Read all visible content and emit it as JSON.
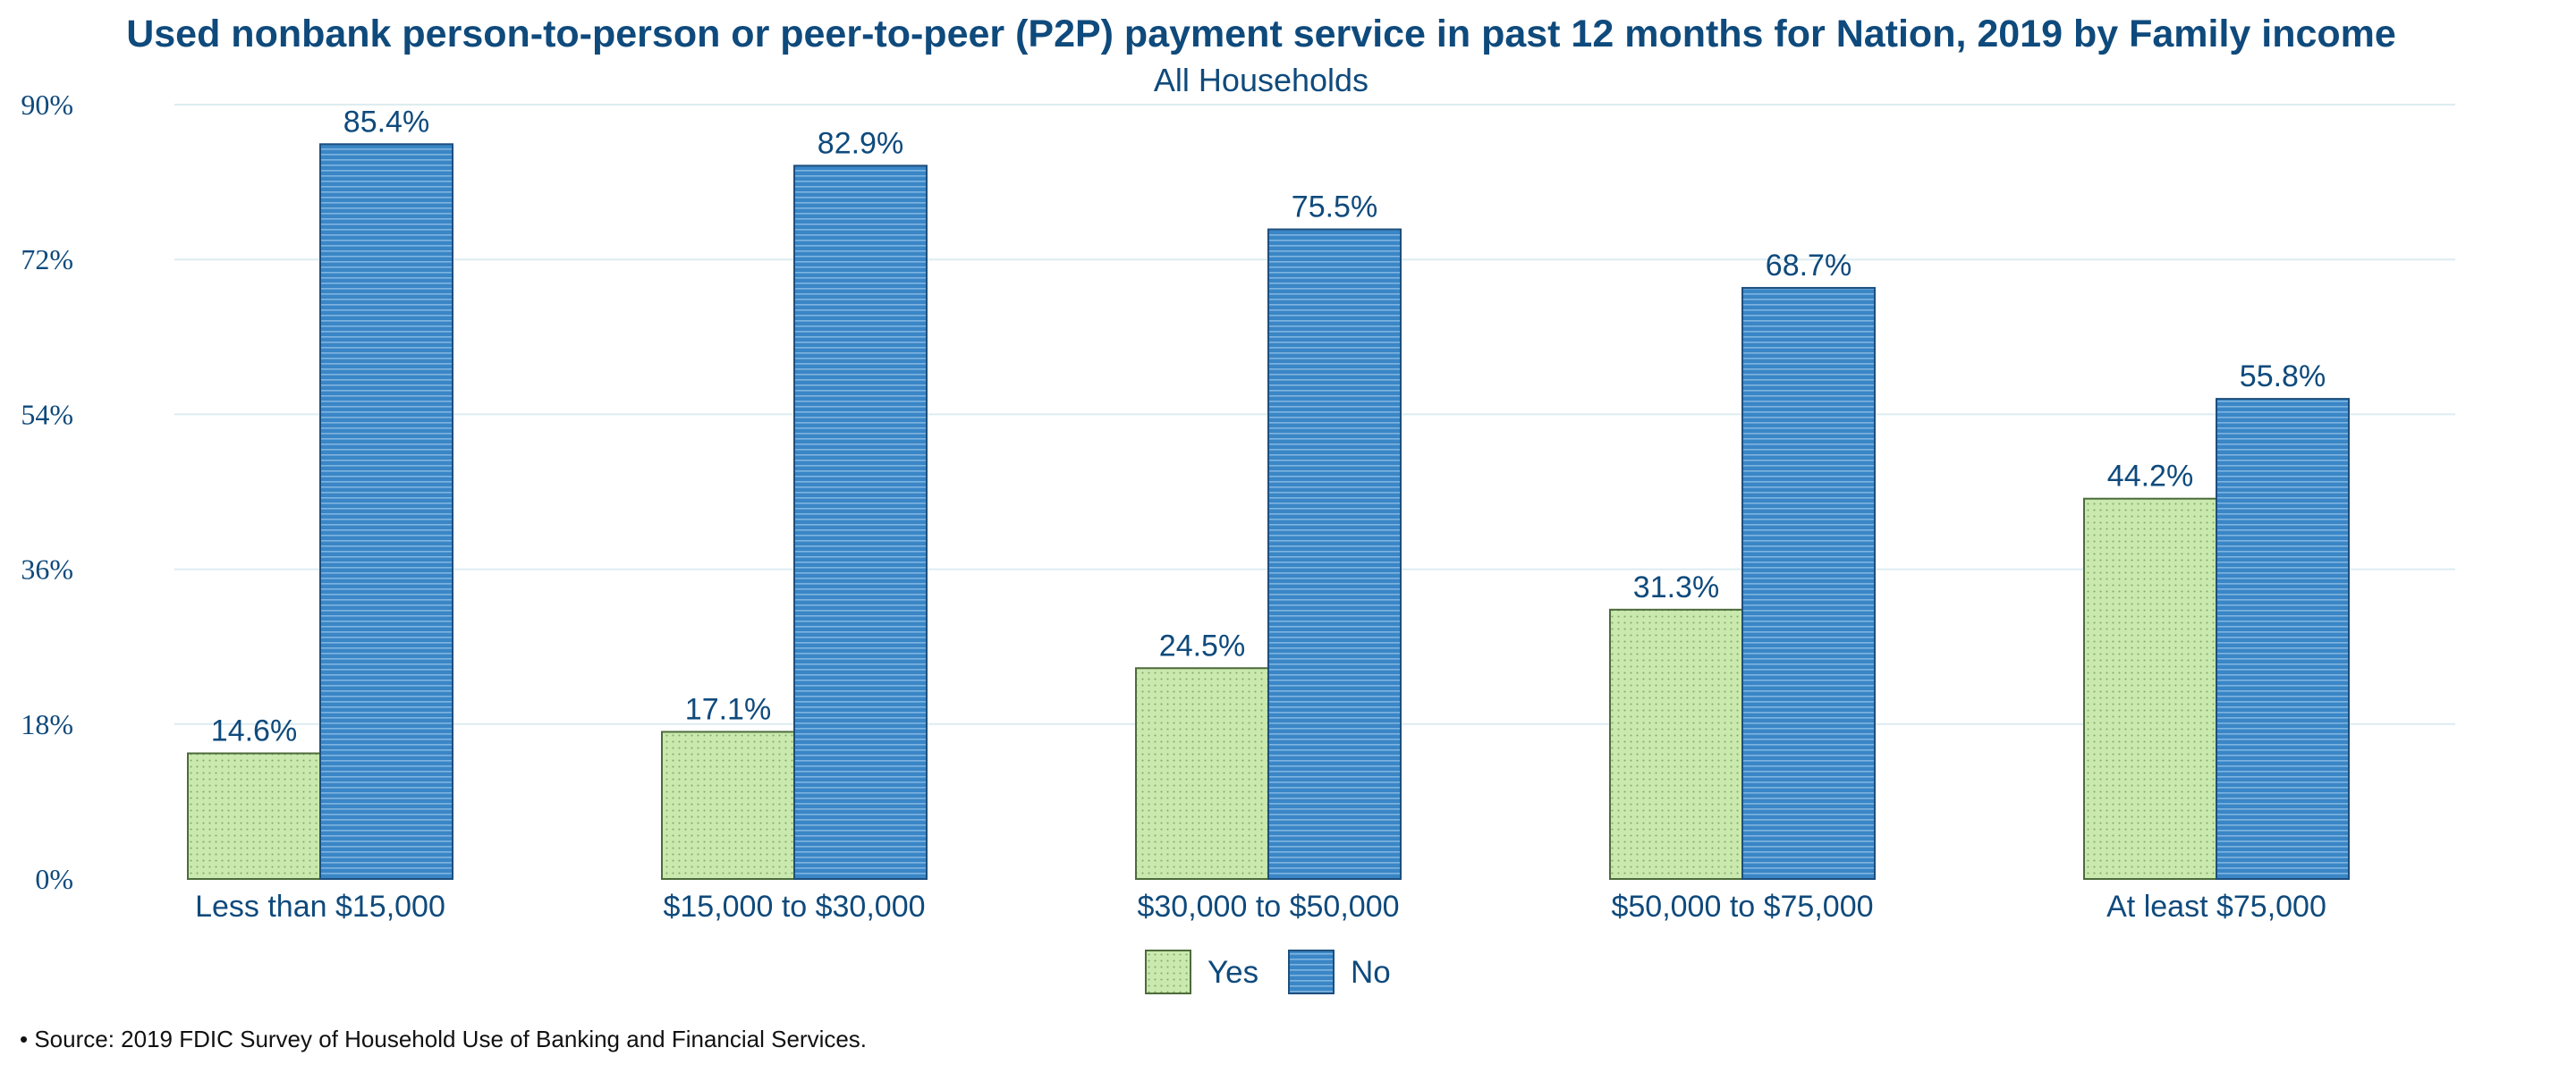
{
  "chart_data": {
    "type": "bar",
    "title": "Used nonbank person-to-person or peer-to-peer (P2P) payment service in past 12 months for Nation, 2019 by Family income",
    "subtitle": "All Households",
    "categories": [
      "Less than $15,000",
      "$15,000 to $30,000",
      "$30,000 to $50,000",
      "$50,000 to $75,000",
      "At least $75,000"
    ],
    "series": [
      {
        "name": "Yes",
        "values": [
          14.6,
          17.1,
          24.5,
          31.3,
          44.2
        ],
        "labels": [
          "14.6%",
          "17.1%",
          "24.5%",
          "31.3%",
          "44.2%"
        ],
        "color": "#c9e9ae",
        "border": "#4d6b3b",
        "pattern": "dots"
      },
      {
        "name": "No",
        "values": [
          85.4,
          82.9,
          75.5,
          68.7,
          55.8
        ],
        "labels": [
          "85.4%",
          "82.9%",
          "75.5%",
          "68.7%",
          "55.8%"
        ],
        "color": "#3a86c6",
        "border": "#1d4f7d",
        "pattern": "horizontal-lines"
      }
    ],
    "ylim": [
      0,
      90
    ],
    "yticks": [
      0,
      18,
      36,
      54,
      72,
      90
    ],
    "ytick_labels": [
      "0%",
      "18%",
      "36%",
      "54%",
      "72%",
      "90%"
    ],
    "xlabel": "",
    "ylabel": "",
    "grid": true,
    "legend_position": "bottom-center",
    "source": "• Source: 2019 FDIC Survey of Household Use of Banking and Financial Services."
  }
}
